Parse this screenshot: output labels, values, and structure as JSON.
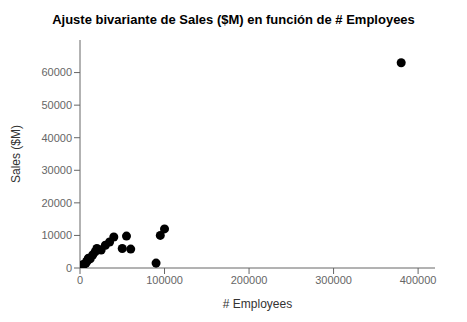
{
  "chart_data": {
    "type": "scatter",
    "title": "Ajuste bivariante de Sales ($M) en función de # Employees",
    "xlabel": "# Employees",
    "ylabel": "Sales ($M)",
    "x": [
      2000,
      3000,
      5000,
      7000,
      8000,
      9000,
      10000,
      12000,
      15000,
      18000,
      20000,
      25000,
      30000,
      35000,
      40000,
      50000,
      55000,
      60000,
      90000,
      95000,
      100000,
      380000
    ],
    "y": [
      500,
      1000,
      1200,
      1500,
      2000,
      2500,
      3000,
      2800,
      4000,
      5000,
      6000,
      5500,
      7000,
      8000,
      9500,
      6000,
      9800,
      5800,
      1500,
      10000,
      12000,
      63000
    ],
    "color": "#000000",
    "xlim": [
      0,
      420000
    ],
    "ylim": [
      0,
      70000
    ],
    "xticks": [
      0,
      100000,
      200000,
      300000,
      400000
    ],
    "yticks": [
      0,
      10000,
      20000,
      30000,
      40000,
      50000,
      60000
    ],
    "grid": false
  }
}
